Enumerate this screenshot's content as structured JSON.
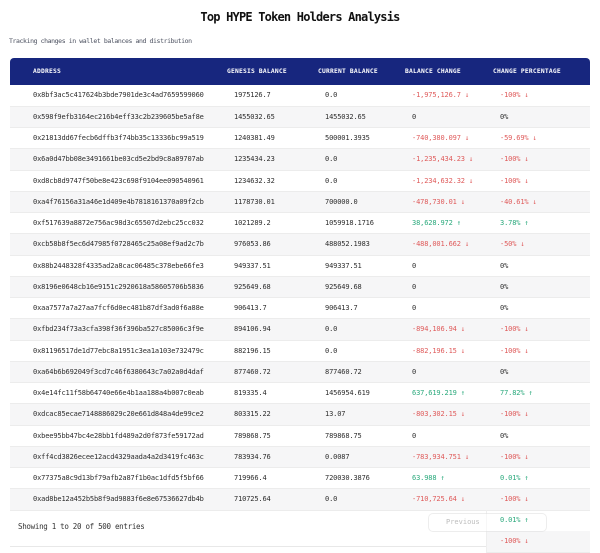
{
  "page": {
    "title": "Top HYPE Token Holders Analysis",
    "subtitle": "Tracking changes in wallet balances and distribution"
  },
  "colors": {
    "header_bg": "#17267e",
    "negative": "#df5b5b",
    "positive": "#2aa97c"
  },
  "table": {
    "columns": [
      "ADDRESS",
      "GENESIS BALANCE",
      "CURRENT BALANCE",
      "BALANCE CHANGE",
      "CHANGE PERCENTAGE"
    ],
    "rows": [
      {
        "address": "0x8bf3ac5c417624b3bde7901de3c4ad7659599060",
        "genesis": "1975126.7",
        "current": "0.0",
        "change": "-1,975,126.7 ↓",
        "pct": "-100% ↓",
        "dir": "down"
      },
      {
        "address": "0x598f9efb3164ec216b4eff33c2b239605be5af8e",
        "genesis": "1455032.65",
        "current": "1455032.65",
        "change": "0",
        "pct": "0%",
        "dir": "none"
      },
      {
        "address": "0x21813dd67fecb6dffb3f74bb35c13336bc99a519",
        "genesis": "1240381.49",
        "current": "500001.3935",
        "change": "-740,380.097 ↓",
        "pct": "-59.69% ↓",
        "dir": "down"
      },
      {
        "address": "0x6a0d47bb08e3491661be03cd5e2bd9c8a89707ab",
        "genesis": "1235434.23",
        "current": "0.0",
        "change": "-1,235,434.23 ↓",
        "pct": "-100% ↓",
        "dir": "down"
      },
      {
        "address": "0xd8cb8d9747f50be8e423c698f9104ee090540961",
        "genesis": "1234632.32",
        "current": "0.0",
        "change": "-1,234,632.32 ↓",
        "pct": "-100% ↓",
        "dir": "down"
      },
      {
        "address": "0xa4f76156a31a46e1d409e4b7818161370a09f2cb",
        "genesis": "1178730.01",
        "current": "700000.0",
        "change": "-478,730.01 ↓",
        "pct": "-40.61% ↓",
        "dir": "down"
      },
      {
        "address": "0xf517639a8872e756ac98d3c65507d2ebc25cc032",
        "genesis": "1021289.2",
        "current": "1059918.1716",
        "change": "38,628.972 ↑",
        "pct": "3.78% ↑",
        "dir": "up"
      },
      {
        "address": "0xcb58b8f5ec6d47985f0728465c25a08ef9ad2c7b",
        "genesis": "976053.86",
        "current": "488052.1983",
        "change": "-488,001.662 ↓",
        "pct": "-50% ↓",
        "dir": "down"
      },
      {
        "address": "0x88b2448328f4335ad2a8cac06485c378ebe66fe3",
        "genesis": "949337.51",
        "current": "949337.51",
        "change": "0",
        "pct": "0%",
        "dir": "none"
      },
      {
        "address": "0x8196e0648cb16e9151c2920618a58605706b5836",
        "genesis": "925649.68",
        "current": "925649.68",
        "change": "0",
        "pct": "0%",
        "dir": "none"
      },
      {
        "address": "0xaa7577a7a27aa7fcf6d0ec481b87df3ad0f6a88e",
        "genesis": "906413.7",
        "current": "906413.7",
        "change": "0",
        "pct": "0%",
        "dir": "none"
      },
      {
        "address": "0xfbd234f73a3cfa398f36f396ba527c85006c3f9e",
        "genesis": "894106.94",
        "current": "0.0",
        "change": "-894,106.94 ↓",
        "pct": "-100% ↓",
        "dir": "down"
      },
      {
        "address": "0x81196517de1d77ebc8a1951c3ea1a103e732479c",
        "genesis": "882196.15",
        "current": "0.0",
        "change": "-882,196.15 ↓",
        "pct": "-100% ↓",
        "dir": "down"
      },
      {
        "address": "0xa64b6b692049f3cd7c46f6380643c7a02a0d4daf",
        "genesis": "877460.72",
        "current": "877460.72",
        "change": "0",
        "pct": "0%",
        "dir": "none"
      },
      {
        "address": "0x4e14fc11f58b64740e66e4b1aa188a4b007c0eab",
        "genesis": "819335.4",
        "current": "1456954.619",
        "change": "637,619.219 ↑",
        "pct": "77.82% ↑",
        "dir": "up"
      },
      {
        "address": "0xdcac85ecae7148886029c20e661d848a4de99ce2",
        "genesis": "803315.22",
        "current": "13.07",
        "change": "-803,302.15 ↓",
        "pct": "-100% ↓",
        "dir": "down"
      },
      {
        "address": "0xbee95bb47bc4e28bb1fd489a2d0f873fe59172ad",
        "genesis": "789868.75",
        "current": "789868.75",
        "change": "0",
        "pct": "0%",
        "dir": "none"
      },
      {
        "address": "0xff4cd3826ecee12acd4329aada4a2d3419fc463c",
        "genesis": "783934.76",
        "current": "0.0087",
        "change": "-783,934.751 ↓",
        "pct": "-100% ↓",
        "dir": "down"
      },
      {
        "address": "0x77375a8c9d13bf79afb2a87f1b0ac1dfd5f5bf66",
        "genesis": "719966.4",
        "current": "720030.3876",
        "change": "63.988 ↑",
        "pct": "0.01% ↑",
        "dir": "up"
      },
      {
        "address": "0xad8be12a452b5b8f9ad9883f6e8e67536627db4b",
        "genesis": "710725.64",
        "current": "0.0",
        "change": "-710,725.64 ↓",
        "pct": "-100% ↓",
        "dir": "down"
      }
    ]
  },
  "footer": {
    "showing": "Showing 1 to 20 of 500 entries",
    "previous_label": "Previous",
    "overflow_cells": [
      {
        "text": "0.01% ↑",
        "dir": "up"
      },
      {
        "text": "-100% ↓",
        "dir": "down"
      }
    ]
  }
}
